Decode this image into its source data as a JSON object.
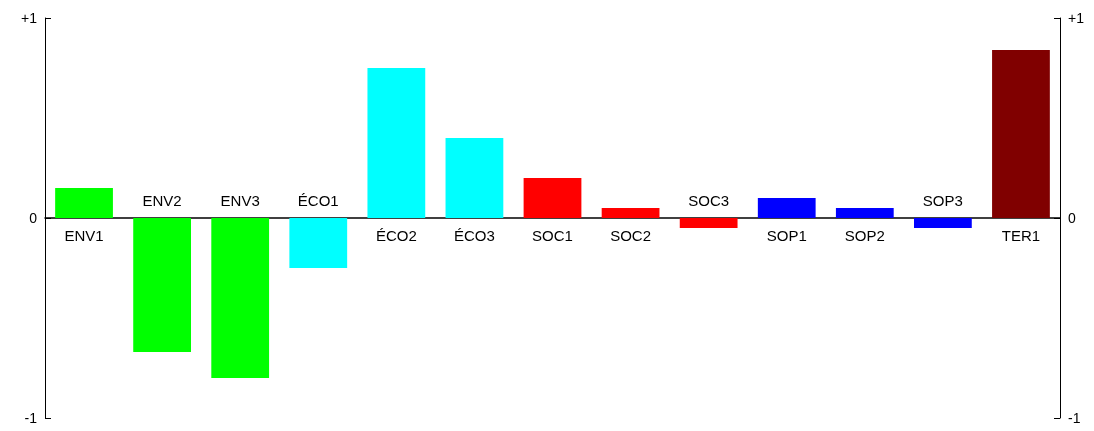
{
  "chart_data": {
    "type": "bar",
    "categories": [
      "ENV1",
      "ENV2",
      "ENV3",
      "ÉCO1",
      "ÉCO2",
      "ÉCO3",
      "SOC1",
      "SOC2",
      "SOC3",
      "SOP1",
      "SOP2",
      "SOP3",
      "TER1"
    ],
    "values": [
      0.15,
      -0.67,
      -0.8,
      -0.25,
      0.75,
      0.4,
      0.2,
      0.05,
      -0.05,
      0.1,
      0.05,
      -0.05,
      0.84
    ],
    "colors": [
      "#00ff00",
      "#00ff00",
      "#00ff00",
      "#00ffff",
      "#00ffff",
      "#00ffff",
      "#ff0000",
      "#ff0000",
      "#ff0000",
      "#0000ff",
      "#0000ff",
      "#0000ff",
      "#800000"
    ],
    "ylim": [
      -1,
      1
    ],
    "yticks": [
      {
        "value": -1,
        "label": "-1"
      },
      0,
      {
        "value": 1,
        "label": "+1"
      }
    ],
    "y2lim": [
      -1,
      1
    ],
    "y2ticks": [
      {
        "value": -1,
        "label": "-1"
      },
      0,
      {
        "value": 1,
        "label": "+1"
      }
    ],
    "grid": false
  }
}
